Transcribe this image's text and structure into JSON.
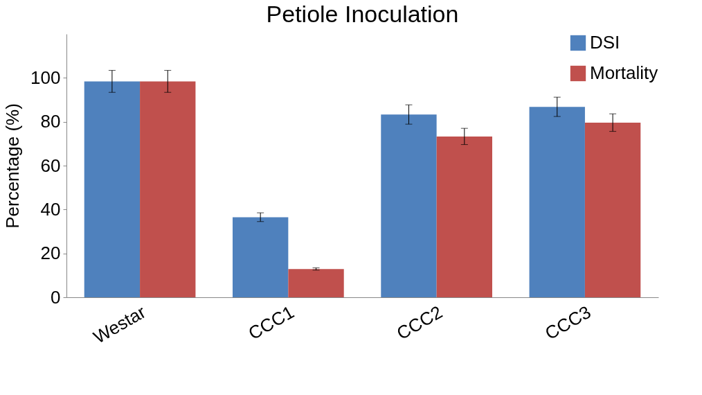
{
  "chart_data": {
    "type": "bar",
    "title": "Petiole Inoculation",
    "ylabel": "Percentage (%)",
    "categories": [
      "Westar",
      "CCC1",
      "CCC2",
      "CCC3"
    ],
    "series": [
      {
        "name": "DSI",
        "color": "#4f81bd",
        "values": [
          98.4,
          36.5,
          83.3,
          86.8
        ],
        "errors": [
          5,
          2,
          4.4,
          4.4
        ]
      },
      {
        "name": "Mortality",
        "color": "#c0504d",
        "values": [
          98.4,
          12.9,
          73.3,
          79.6
        ],
        "errors": [
          5,
          0.5,
          3.7,
          4
        ]
      }
    ],
    "ylim": [
      0,
      120
    ],
    "yticks": [
      0,
      20,
      40,
      60,
      80,
      100
    ],
    "grid": false,
    "legend": "top right"
  }
}
